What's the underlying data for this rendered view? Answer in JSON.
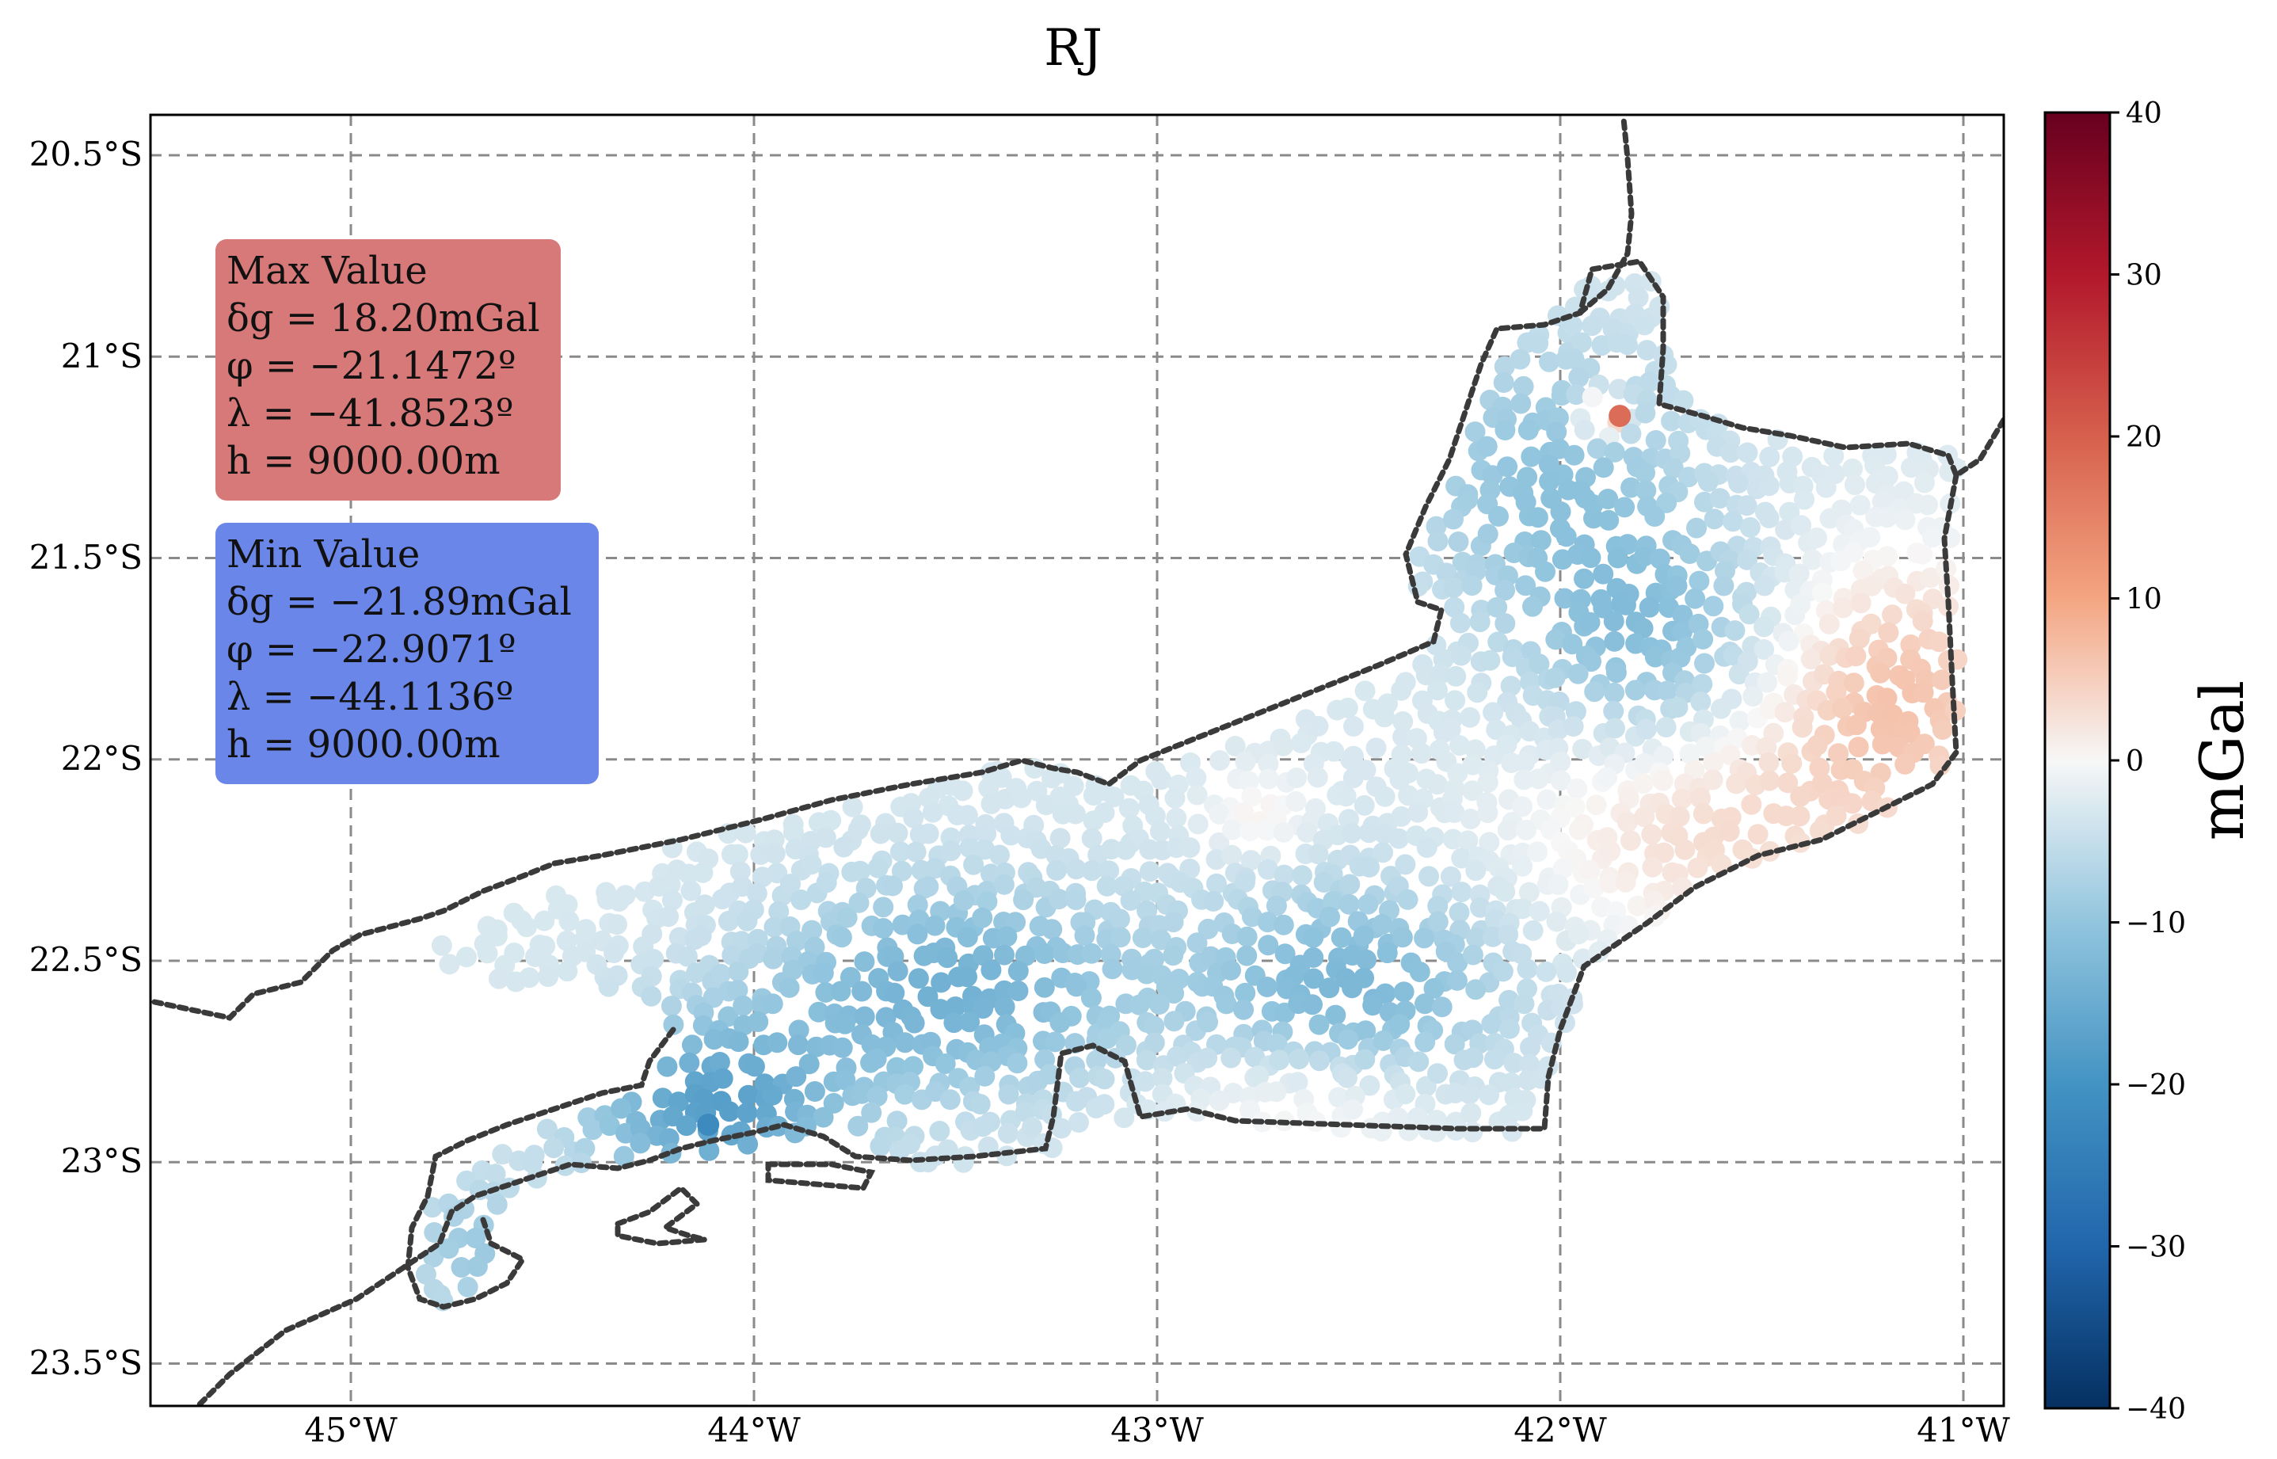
{
  "title": "RJ",
  "colorbar": {
    "label": "mGal",
    "ticks": [
      "40",
      "30",
      "20",
      "10",
      "0",
      "−10",
      "−20",
      "−30",
      "−40"
    ],
    "min": -40,
    "max": 40,
    "colormap": "RdBu_r"
  },
  "axes": {
    "xticks": [
      "45°W",
      "44°W",
      "43°W",
      "42°W",
      "41°W"
    ],
    "yticks": [
      "20.5°S",
      "21°S",
      "21.5°S",
      "22°S",
      "22.5°S",
      "23°S",
      "23.5°S"
    ],
    "xlim": [
      -45.5,
      -40.9
    ],
    "ylim": [
      -23.6,
      -20.4
    ],
    "grid": true
  },
  "max_box": {
    "lines": [
      "Max Value",
      "δg = 18.20mGal",
      "φ = −21.1472º",
      "λ = −41.8523º",
      "h = 9000.00m"
    ],
    "color": "#d67978"
  },
  "min_box": {
    "lines": [
      "Min Value",
      "δg = −21.89mGal",
      "φ = −22.9071º",
      "λ = −44.1136º",
      "h = 9000.00m"
    ],
    "color": "#6a86e8"
  },
  "chart_data": {
    "type": "scatter",
    "title": "RJ",
    "xlabel": "",
    "ylabel": "",
    "colorbar_label": "mGal",
    "color_range": [
      -40,
      40
    ],
    "max_point": {
      "lon": -41.8523,
      "lat": -21.1472,
      "value": 18.2
    },
    "min_point": {
      "lon": -44.1136,
      "lat": -22.9071,
      "value": -21.89
    }
  }
}
